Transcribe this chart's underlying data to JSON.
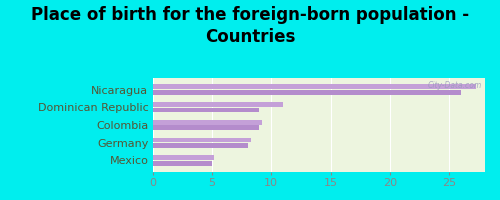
{
  "title": "Place of birth for the foreign-born population -\nCountries",
  "categories": [
    "Nicaragua",
    "Dominican Republic",
    "Colombia",
    "Germany",
    "Mexico"
  ],
  "values_top": [
    27.2,
    11.0,
    9.2,
    8.3,
    5.2
  ],
  "values_bot": [
    26.0,
    9.0,
    9.0,
    8.0,
    5.0
  ],
  "bar_color_light": "#c4a0d8",
  "bar_color_dark": "#b48ccc",
  "background_outer": "#00eeee",
  "background_inner": "#edf5df",
  "xlim": [
    0,
    28
  ],
  "xticks": [
    0,
    5,
    10,
    15,
    20,
    25
  ],
  "title_fontsize": 12,
  "label_fontsize": 8,
  "tick_fontsize": 8
}
